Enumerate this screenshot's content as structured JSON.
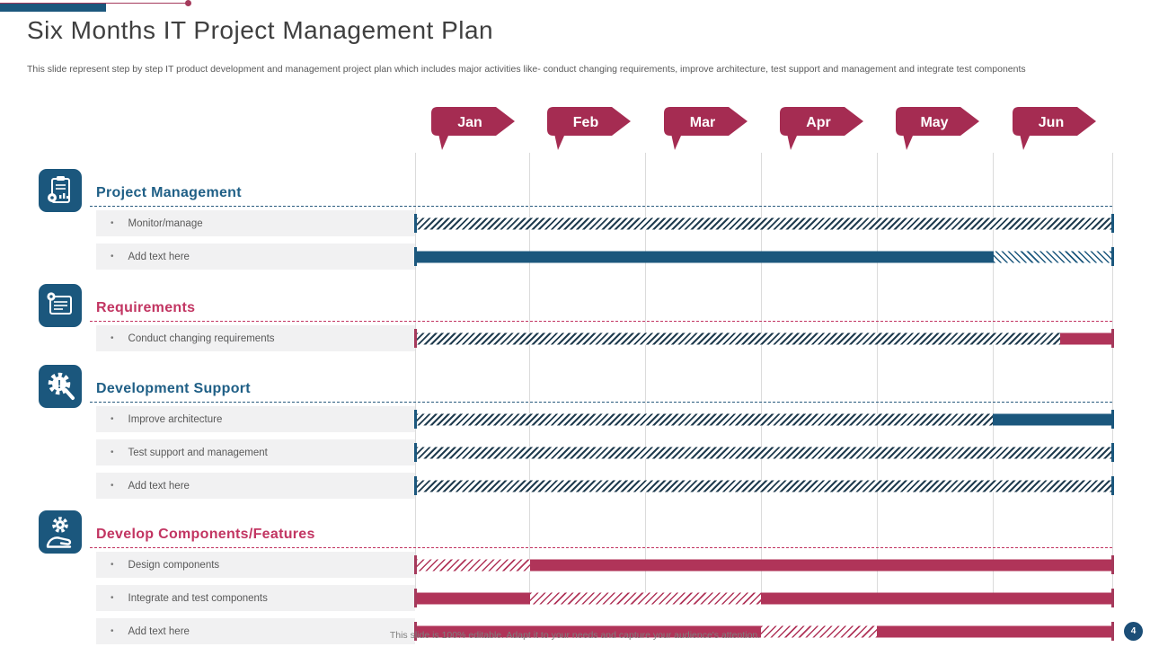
{
  "header": {
    "title": "Six Months IT Project Management Plan",
    "subtitle": "This slide represent step by step IT  product development and management project plan which includes major activities like- conduct changing requirements, improve architecture, test support and management and integrate test components"
  },
  "footer": {
    "note": "This slide is 100% editable. Adapt it to your needs and capture your audience's attention.",
    "page_number": "4"
  },
  "colors": {
    "blue": "#1B577D",
    "navy_hatch": "#203C4F",
    "crimson": "#B03459",
    "ribbon_crimson": "#A52C52",
    "title_blue": "#1F5F86",
    "title_crimson": "#C23562",
    "row_bg": "#F1F1F2",
    "grid": "#DBDBDB"
  },
  "chart_data": {
    "type": "gantt",
    "months": [
      "Jan",
      "Feb",
      "Mar",
      "Apr",
      "May",
      "Jun"
    ],
    "month_boundaries_pct": [
      0,
      16.4,
      33.0,
      49.6,
      66.2,
      82.9,
      100
    ],
    "bullet": "•",
    "sections": [
      {
        "title": "Project Management",
        "theme": "blue",
        "icon": "clipboard-chart-icon",
        "tasks": [
          {
            "label": "Monitor/manage",
            "cap": "blue",
            "segments": [
              {
                "pattern": "hatch",
                "style": "hatch-navy",
                "from_pct": 0,
                "to_pct": 100
              }
            ]
          },
          {
            "label": "Add text here",
            "cap": "blue",
            "segments": [
              {
                "pattern": "solid",
                "style": "solid-blue",
                "from_pct": 0,
                "to_pct": 83
              },
              {
                "pattern": "hatch",
                "style": "hatch-blue-fwd",
                "from_pct": 83,
                "to_pct": 100
              }
            ]
          }
        ]
      },
      {
        "title": "Requirements",
        "theme": "crimson",
        "icon": "document-gear-icon",
        "tasks": [
          {
            "label": "Conduct  changing  requirements",
            "cap": "crimson",
            "segments": [
              {
                "pattern": "hatch",
                "style": "hatch-navy",
                "from_pct": 0,
                "to_pct": 92.5
              },
              {
                "pattern": "solid",
                "style": "solid-crimson",
                "from_pct": 92.5,
                "to_pct": 100
              }
            ]
          }
        ]
      },
      {
        "title": "Development Support",
        "theme": "blue",
        "icon": "gear-magnifier-icon",
        "tasks": [
          {
            "label": "Improve  architecture",
            "cap": "blue",
            "segments": [
              {
                "pattern": "hatch",
                "style": "hatch-navy",
                "from_pct": 0,
                "to_pct": 82.9
              },
              {
                "pattern": "solid",
                "style": "solid-blue",
                "from_pct": 82.9,
                "to_pct": 100
              }
            ]
          },
          {
            "label": "Test  support  and  management",
            "cap": "blue",
            "segments": [
              {
                "pattern": "hatch",
                "style": "hatch-navy",
                "from_pct": 0,
                "to_pct": 100
              }
            ]
          },
          {
            "label": "Add text here",
            "cap": "blue",
            "segments": [
              {
                "pattern": "hatch",
                "style": "hatch-navy",
                "from_pct": 0,
                "to_pct": 100
              }
            ]
          }
        ]
      },
      {
        "title": "Develop Components/Features",
        "theme": "crimson",
        "icon": "hand-gear-icon",
        "tasks": [
          {
            "label": "Design  components",
            "cap": "crimson",
            "segments": [
              {
                "pattern": "hatch",
                "style": "hatch-crimson",
                "from_pct": 0,
                "to_pct": 16.4
              },
              {
                "pattern": "solid",
                "style": "solid-crimson",
                "from_pct": 16.4,
                "to_pct": 100
              }
            ]
          },
          {
            "label": "Integrate  and  test  components",
            "cap": "crimson",
            "segments": [
              {
                "pattern": "solid",
                "style": "solid-crimson",
                "from_pct": 0,
                "to_pct": 16.4
              },
              {
                "pattern": "hatch",
                "style": "hatch-crimson",
                "from_pct": 16.4,
                "to_pct": 49.6
              },
              {
                "pattern": "solid",
                "style": "solid-crimson",
                "from_pct": 49.6,
                "to_pct": 100
              }
            ]
          },
          {
            "label": "Add text here",
            "cap": "crimson",
            "segments": [
              {
                "pattern": "solid",
                "style": "solid-crimson",
                "from_pct": 0,
                "to_pct": 49.6
              },
              {
                "pattern": "hatch",
                "style": "hatch-crimson",
                "from_pct": 49.6,
                "to_pct": 66.2
              },
              {
                "pattern": "solid",
                "style": "solid-crimson",
                "from_pct": 66.2,
                "to_pct": 100
              }
            ]
          }
        ]
      }
    ]
  }
}
